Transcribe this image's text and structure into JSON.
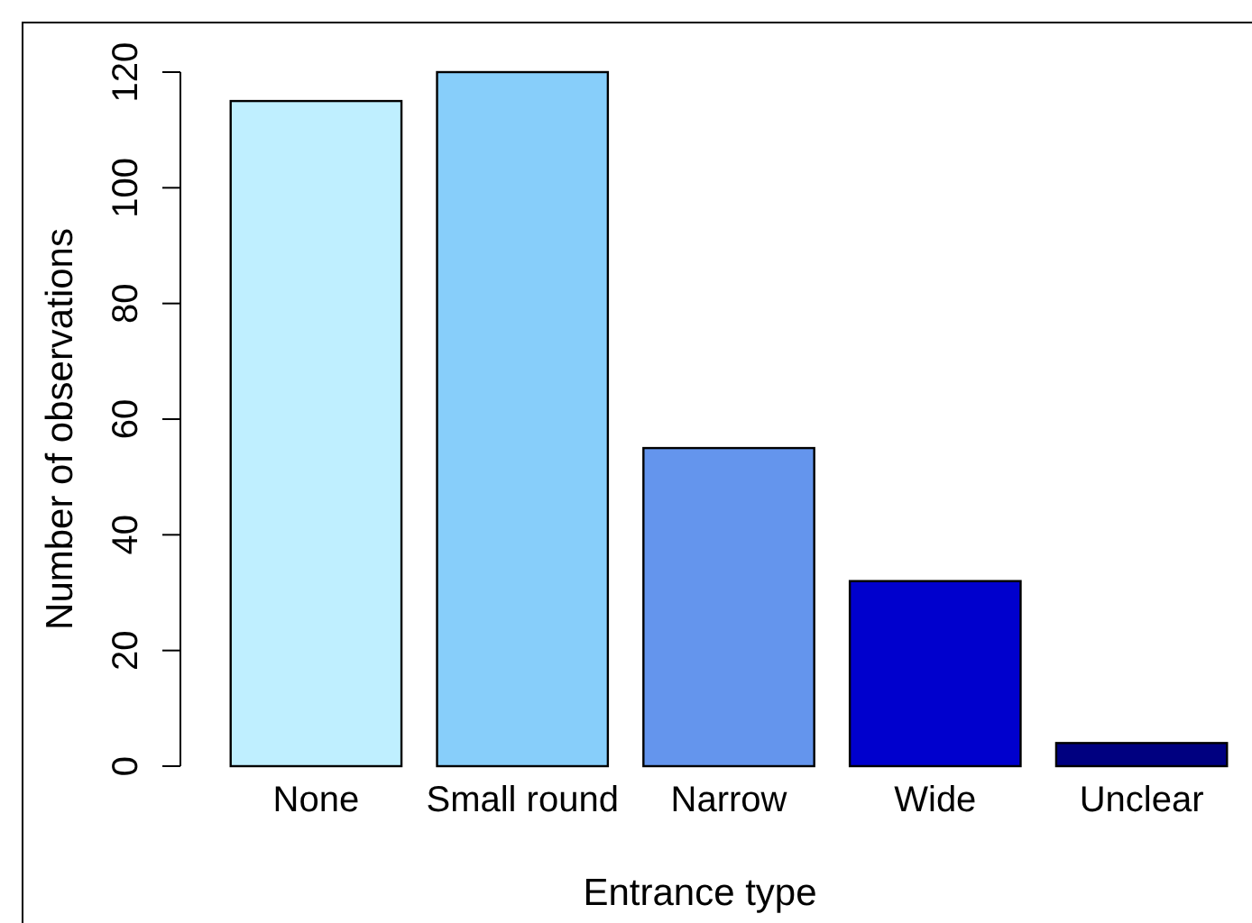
{
  "chart_data": {
    "type": "bar",
    "xlabel": "Entrance type",
    "ylabel": "Number of observations",
    "categories": [
      "None",
      "Small round",
      "Narrow",
      "Wide",
      "Unclear"
    ],
    "values": [
      115,
      120,
      55,
      32,
      4
    ],
    "colors": [
      "#bfefff",
      "#87cefa",
      "#6495ed",
      "#0000cd",
      "#000080"
    ],
    "ylim": [
      0,
      120
    ],
    "yticks": [
      0,
      20,
      40,
      60,
      80,
      100,
      120
    ],
    "grid": false
  }
}
